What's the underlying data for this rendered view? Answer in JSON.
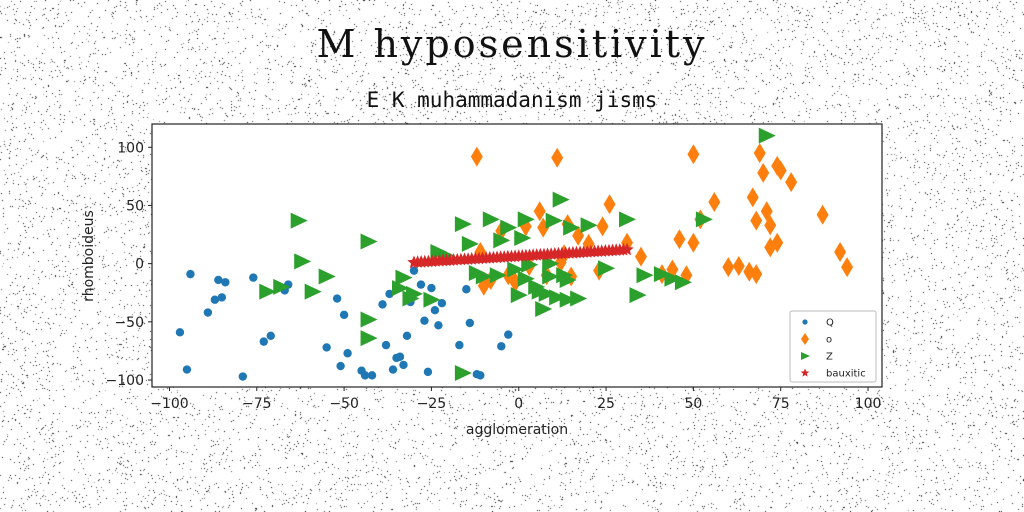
{
  "header": {
    "suptitle": "M hyposensitivity",
    "title": "E K muhammadanism jisms"
  },
  "chart_data": {
    "type": "scatter",
    "title": "E K muhammadanism jisms",
    "suptitle": "M hyposensitivity",
    "xlabel": "agglomeration",
    "ylabel": "rhomboideus",
    "xlim": [
      -105,
      104
    ],
    "ylim": [
      -106,
      120
    ],
    "xticks": [
      -100,
      -75,
      -50,
      -25,
      0,
      25,
      50,
      75,
      100
    ],
    "yticks": [
      -100,
      -50,
      0,
      50,
      100
    ],
    "legend_position": "lower-right",
    "series": [
      {
        "name": "Q",
        "marker": "circle",
        "color": "#1f77b4",
        "points": [
          [
            -97,
            -59
          ],
          [
            -95,
            -91
          ],
          [
            -94,
            -9
          ],
          [
            -89,
            -42
          ],
          [
            -87,
            -31
          ],
          [
            -86,
            -14
          ],
          [
            -85,
            -29
          ],
          [
            -84,
            -16
          ],
          [
            -79,
            -97
          ],
          [
            -76,
            -12
          ],
          [
            -73,
            -67
          ],
          [
            -71,
            -62
          ],
          [
            -67,
            -23
          ],
          [
            -66,
            -18
          ],
          [
            -55,
            -72
          ],
          [
            -52,
            -30
          ],
          [
            -51,
            -88
          ],
          [
            -50,
            -44
          ],
          [
            -49,
            -77
          ],
          [
            -45,
            -92
          ],
          [
            -44,
            -96
          ],
          [
            -42,
            -96
          ],
          [
            -39,
            -35
          ],
          [
            -38,
            -70
          ],
          [
            -37,
            -26
          ],
          [
            -36,
            -91
          ],
          [
            -35,
            -81
          ],
          [
            -34,
            -80
          ],
          [
            -33,
            -87
          ],
          [
            -32,
            -62
          ],
          [
            -31,
            -33
          ],
          [
            -30,
            -6
          ],
          [
            -28,
            -18
          ],
          [
            -27,
            -49
          ],
          [
            -26,
            -93
          ],
          [
            -25,
            -21
          ],
          [
            -24,
            -40
          ],
          [
            -23,
            -53
          ],
          [
            -22,
            -34
          ],
          [
            -17,
            -70
          ],
          [
            -15,
            -22
          ],
          [
            -14,
            -51
          ],
          [
            -12,
            -95
          ],
          [
            -11,
            -96
          ],
          [
            -5,
            -71
          ],
          [
            -3,
            -61
          ]
        ]
      },
      {
        "name": "o",
        "marker": "diamond",
        "color": "#ff7f0e",
        "points": [
          [
            -12,
            92
          ],
          [
            -11,
            10
          ],
          [
            -10,
            -19
          ],
          [
            -8,
            -14
          ],
          [
            -5,
            28
          ],
          [
            -3,
            -10
          ],
          [
            -1,
            -16
          ],
          [
            2,
            32
          ],
          [
            3,
            -2
          ],
          [
            6,
            45
          ],
          [
            7,
            31
          ],
          [
            8,
            -10
          ],
          [
            11,
            91
          ],
          [
            12,
            1
          ],
          [
            13,
            8
          ],
          [
            14,
            34
          ],
          [
            15,
            -11
          ],
          [
            17,
            24
          ],
          [
            20,
            17
          ],
          [
            23,
            -6
          ],
          [
            24,
            32
          ],
          [
            26,
            51
          ],
          [
            31,
            18
          ],
          [
            35,
            6
          ],
          [
            41,
            -9
          ],
          [
            44,
            -5
          ],
          [
            46,
            21
          ],
          [
            48,
            -10
          ],
          [
            50,
            18
          ],
          [
            50,
            94
          ],
          [
            52,
            38
          ],
          [
            56,
            53
          ],
          [
            60,
            -3
          ],
          [
            63,
            -2
          ],
          [
            66,
            -7
          ],
          [
            67,
            57
          ],
          [
            68,
            -9
          ],
          [
            68,
            37
          ],
          [
            69,
            95
          ],
          [
            70,
            78
          ],
          [
            71,
            45
          ],
          [
            72,
            33
          ],
          [
            72,
            14
          ],
          [
            74,
            84
          ],
          [
            74,
            18
          ],
          [
            75,
            80
          ],
          [
            78,
            70
          ],
          [
            87,
            42
          ],
          [
            92,
            10
          ],
          [
            94,
            -3
          ]
        ]
      },
      {
        "name": "Z",
        "marker": "triangle-right",
        "color": "#2ca02c",
        "points": [
          [
            -72,
            -24
          ],
          [
            -68,
            -20
          ],
          [
            -63,
            37
          ],
          [
            -62,
            2
          ],
          [
            -59,
            -24
          ],
          [
            -55,
            -11
          ],
          [
            -43,
            -64
          ],
          [
            -43,
            -48
          ],
          [
            -43,
            19
          ],
          [
            -34,
            -21
          ],
          [
            -33,
            -12
          ],
          [
            -31,
            -30
          ],
          [
            -30,
            -26
          ],
          [
            -25,
            -31
          ],
          [
            -23,
            10
          ],
          [
            -21,
            7
          ],
          [
            -16,
            -94
          ],
          [
            -16,
            34
          ],
          [
            -14,
            17
          ],
          [
            -12,
            -8
          ],
          [
            -10,
            -11
          ],
          [
            -8,
            38
          ],
          [
            -6,
            -10
          ],
          [
            -5,
            20
          ],
          [
            -3,
            31
          ],
          [
            -1,
            -5
          ],
          [
            0,
            -27
          ],
          [
            1,
            22
          ],
          [
            2,
            38
          ],
          [
            2,
            -13
          ],
          [
            3,
            -1
          ],
          [
            5,
            -20
          ],
          [
            6,
            -24
          ],
          [
            7,
            -39
          ],
          [
            8,
            -26
          ],
          [
            9,
            0
          ],
          [
            9,
            -11
          ],
          [
            10,
            37
          ],
          [
            11,
            -29
          ],
          [
            12,
            55
          ],
          [
            13,
            -10
          ],
          [
            14,
            -14
          ],
          [
            14,
            -31
          ],
          [
            15,
            31
          ],
          [
            17,
            -30
          ],
          [
            20,
            33
          ],
          [
            25,
            -4
          ],
          [
            31,
            38
          ],
          [
            34,
            -27
          ],
          [
            36,
            -10
          ],
          [
            41,
            -9
          ],
          [
            44,
            -13
          ],
          [
            47,
            -16
          ],
          [
            53,
            38
          ],
          [
            71,
            110
          ]
        ]
      },
      {
        "name": "bauxitic",
        "marker": "star",
        "color": "#d62728",
        "x_range": [
          -30,
          31
        ],
        "y_range": [
          1,
          12
        ]
      }
    ]
  }
}
